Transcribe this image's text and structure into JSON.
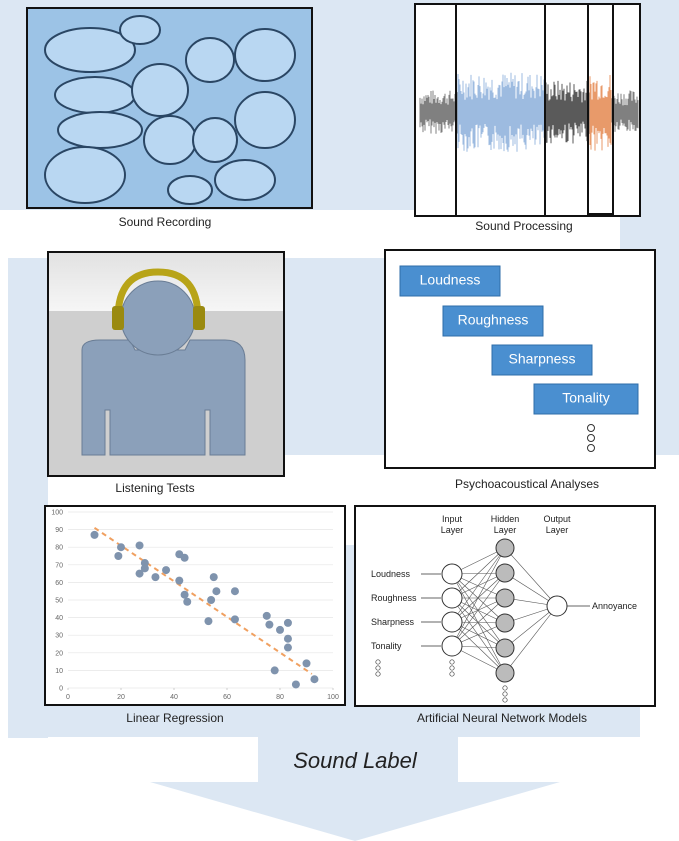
{
  "panels": [
    {
      "caption": "Sound Recording"
    },
    {
      "caption": "Sound Processing"
    },
    {
      "caption": "Listening Tests"
    },
    {
      "caption": "Psychoacoustical Analyses"
    },
    {
      "caption": "Linear Regression"
    },
    {
      "caption": "Artificial Neural Network Models"
    }
  ],
  "psychoacoustics": {
    "parameters": [
      "Loudness",
      "Roughness",
      "Sharpness",
      "Tonality"
    ]
  },
  "regression": {
    "type": "scatter",
    "xlim": [
      0,
      100
    ],
    "ylim": [
      0,
      100
    ],
    "xticks": [
      0,
      20,
      40,
      60,
      80,
      100
    ],
    "yticks": [
      0,
      10,
      20,
      30,
      40,
      50,
      60,
      70,
      80,
      90,
      100
    ],
    "points": {
      "x": [
        10,
        20,
        19,
        27,
        27,
        29,
        29,
        33,
        37,
        42,
        44,
        42,
        44,
        45,
        53,
        54,
        55,
        56,
        63,
        63,
        75,
        76,
        80,
        83,
        83,
        83,
        78,
        86,
        90,
        93
      ],
      "y": [
        87,
        80,
        75,
        81,
        65,
        71,
        68,
        63,
        67,
        76,
        74,
        61,
        53,
        49,
        38,
        50,
        63,
        55,
        55,
        39,
        41,
        36,
        33,
        28,
        23,
        37,
        10,
        2,
        14,
        5
      ],
      "color": "#7f93ad"
    },
    "trend": {
      "x": [
        10,
        92
      ],
      "y": [
        91,
        8
      ],
      "color": "#f0a060"
    }
  },
  "ann": {
    "layers": [
      [
        "Input",
        "Layer"
      ],
      [
        "Hidden",
        "Layer"
      ],
      [
        "Output",
        "Layer"
      ]
    ],
    "inputs": [
      "Loudness",
      "Roughness",
      "Sharpness",
      "Tonality"
    ],
    "output": "Annoyance"
  },
  "sound_label": "Sound Label"
}
